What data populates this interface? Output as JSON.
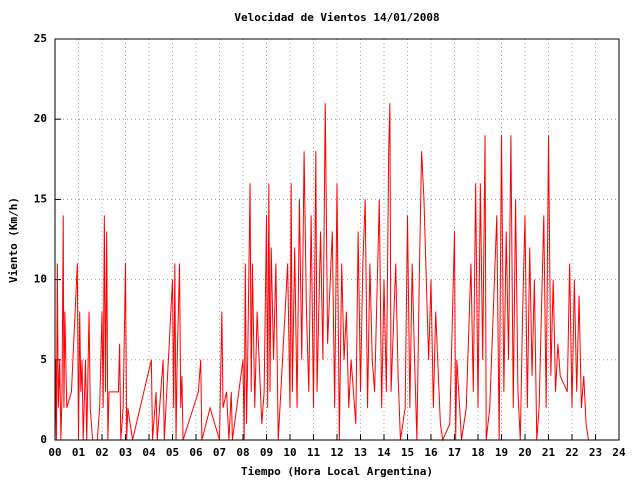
{
  "chart_data": {
    "type": "line",
    "title": "Velocidad de Vientos 14/01/2008",
    "xlabel": "Tiempo (Hora Local Argentina)",
    "ylabel": "Viento (Km/h)",
    "xlim": [
      0,
      24
    ],
    "ylim": [
      0,
      25
    ],
    "xticks": [
      {
        "value": 0,
        "label": "00"
      },
      {
        "value": 1,
        "label": "01"
      },
      {
        "value": 2,
        "label": "02"
      },
      {
        "value": 3,
        "label": "03"
      },
      {
        "value": 4,
        "label": "04"
      },
      {
        "value": 5,
        "label": "05"
      },
      {
        "value": 6,
        "label": "06"
      },
      {
        "value": 7,
        "label": "07"
      },
      {
        "value": 8,
        "label": "08"
      },
      {
        "value": 9,
        "label": "09"
      },
      10,
      11,
      12,
      13,
      14,
      15,
      16,
      17,
      18,
      19,
      20,
      21,
      22,
      23,
      24
    ],
    "yticks": [
      0,
      5,
      10,
      15,
      20,
      25
    ],
    "grid": true,
    "series": [
      {
        "color": "#ff0000",
        "x": [
          0.0,
          0.03,
          0.06,
          0.1,
          0.14,
          0.2,
          0.25,
          0.3,
          0.35,
          0.38,
          0.42,
          0.5,
          0.7,
          0.95,
          1.0,
          1.05,
          1.1,
          1.15,
          1.2,
          1.3,
          1.35,
          1.45,
          1.5,
          1.6,
          1.8,
          1.9,
          2.0,
          2.05,
          2.1,
          2.15,
          2.2,
          2.25,
          2.3,
          2.5,
          2.7,
          2.75,
          2.8,
          2.9,
          3.0,
          3.05,
          3.1,
          3.3,
          4.1,
          4.15,
          4.3,
          4.35,
          4.6,
          4.65,
          5.0,
          5.05,
          5.1,
          5.15,
          5.2,
          5.3,
          5.35,
          5.4,
          5.45,
          6.1,
          6.2,
          6.25,
          6.6,
          7.0,
          7.1,
          7.15,
          7.3,
          7.4,
          7.5,
          7.55,
          8.0,
          8.05,
          8.1,
          8.15,
          8.2,
          8.3,
          8.35,
          8.4,
          8.5,
          8.6,
          8.8,
          8.9,
          9.0,
          9.05,
          9.1,
          9.15,
          9.2,
          9.3,
          9.4,
          9.5,
          9.9,
          10.0,
          10.05,
          10.1,
          10.2,
          10.3,
          10.4,
          10.5,
          10.6,
          10.7,
          10.8,
          10.9,
          11.0,
          11.1,
          11.15,
          11.3,
          11.4,
          11.5,
          11.6,
          11.8,
          11.9,
          12.0,
          12.1,
          12.2,
          12.3,
          12.4,
          12.5,
          12.6,
          12.8,
          12.9,
          13.0,
          13.1,
          13.2,
          13.3,
          13.4,
          13.5,
          13.6,
          13.8,
          13.9,
          14.0,
          14.1,
          14.2,
          14.25,
          14.3,
          14.5,
          14.6,
          14.7,
          14.9,
          15.0,
          15.1,
          15.2,
          15.3,
          15.4,
          15.5,
          15.6,
          15.7,
          15.8,
          15.9,
          16.0,
          16.1,
          16.2,
          16.4,
          16.5,
          16.8,
          17.0,
          17.05,
          17.1,
          17.3,
          17.5,
          17.7,
          17.8,
          17.9,
          18.0,
          18.1,
          18.2,
          18.3,
          18.35,
          18.5,
          18.8,
          18.9,
          19.0,
          19.1,
          19.2,
          19.3,
          19.4,
          19.5,
          19.6,
          19.7,
          19.8,
          19.9,
          20.0,
          20.1,
          20.2,
          20.3,
          20.4,
          20.5,
          20.6,
          20.8,
          20.9,
          21.0,
          21.1,
          21.2,
          21.3,
          21.4,
          21.5,
          21.8,
          21.9,
          22.0,
          22.1,
          22.2,
          22.3,
          22.4,
          22.5,
          22.6,
          22.7
        ],
        "values": [
          0,
          5,
          0,
          11,
          2,
          5,
          0,
          3,
          14,
          2,
          8,
          2,
          3,
          11,
          0,
          8,
          3,
          5,
          0,
          5,
          0,
          8,
          2,
          0,
          0,
          2,
          8,
          2,
          14,
          3,
          13,
          0,
          3,
          3,
          3,
          6,
          0,
          2,
          11,
          0,
          2,
          0,
          5,
          0,
          3,
          0,
          5,
          0,
          10,
          2,
          11,
          0,
          5,
          11,
          2,
          4,
          0,
          3,
          5,
          0,
          2,
          0,
          8,
          2,
          3,
          0,
          3,
          0,
          5,
          0,
          11,
          1,
          5,
          16,
          3,
          11,
          2,
          8,
          1,
          3,
          14,
          2,
          16,
          3,
          12,
          5,
          11,
          0,
          11,
          2,
          16,
          3,
          12,
          2,
          15,
          5,
          18,
          8,
          3,
          14,
          2,
          18,
          3,
          13,
          5,
          21,
          6,
          13,
          2,
          16,
          0,
          11,
          5,
          8,
          2,
          5,
          1,
          13,
          3,
          11,
          15,
          2,
          11,
          5,
          3,
          15,
          2,
          10,
          3,
          18,
          21,
          3,
          11,
          4,
          0,
          2,
          14,
          2,
          11,
          5,
          0,
          10,
          18,
          15,
          10,
          5,
          10,
          2,
          8,
          1,
          0,
          1,
          13,
          0,
          5,
          0,
          2,
          11,
          3,
          16,
          2,
          16,
          5,
          19,
          0,
          2,
          14,
          0,
          19,
          3,
          13,
          5,
          19,
          2,
          15,
          3,
          0,
          8,
          14,
          2,
          12,
          4,
          10,
          0,
          2,
          14,
          2,
          19,
          4,
          10,
          3,
          6,
          4,
          3,
          11,
          2,
          10,
          3,
          9,
          2,
          4,
          1,
          0
        ]
      }
    ]
  }
}
